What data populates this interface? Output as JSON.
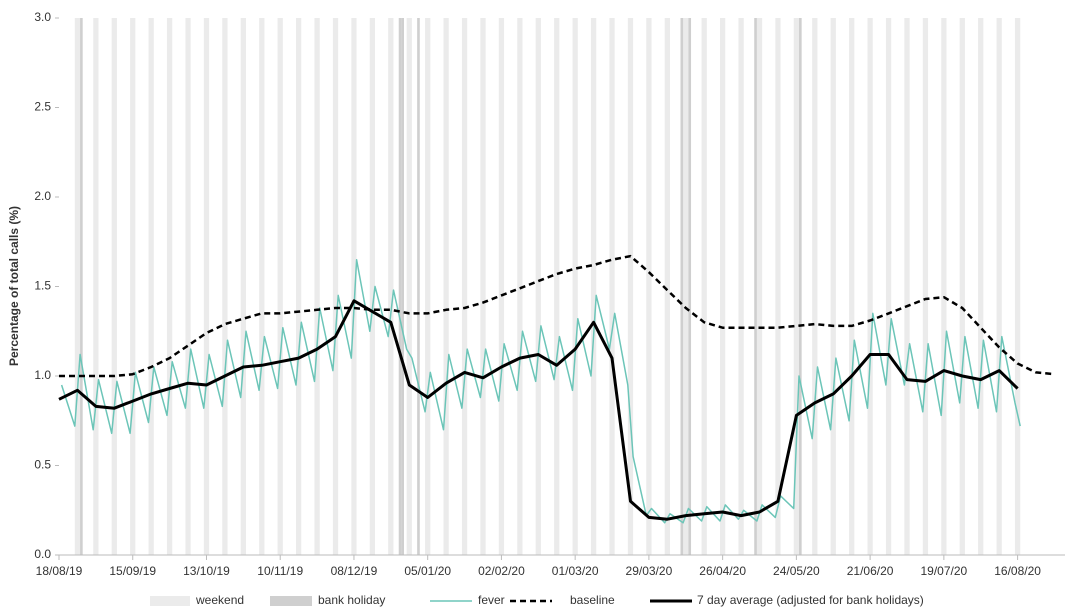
{
  "chart_data": {
    "type": "line",
    "y_label": "Percentage of total calls (%)",
    "xlim": [
      "18/08/19",
      "03/09/20"
    ],
    "xticks": [
      "18/08/19",
      "15/09/19",
      "13/10/19",
      "10/11/19",
      "08/12/19",
      "05/01/20",
      "02/02/20",
      "01/03/20",
      "29/03/20",
      "26/04/20",
      "24/05/20",
      "21/06/20",
      "19/07/20",
      "16/08/20"
    ],
    "ylim": [
      0,
      3
    ],
    "yticks": [
      {
        "value": 0,
        "label": "0.0"
      },
      0.5,
      {
        "value": 1,
        "label": "1.0"
      },
      1.5,
      {
        "value": 2,
        "label": "2.0"
      },
      2.5,
      {
        "value": 3,
        "label": "3.0"
      }
    ],
    "weekend": {
      "label": "weekend",
      "color": "#ebebeb"
    },
    "bank_holiday": {
      "label": "bank holiday",
      "color": "#cfcfcf",
      "dates": [
        "26/08/19",
        "25/12/19",
        "26/12/19",
        "01/01/20",
        "10/04/20",
        "13/04/20",
        "08/05/20",
        "25/05/20"
      ]
    },
    "x": [
      "18/08/19",
      "25/08/19",
      "01/09/19",
      "08/09/19",
      "15/09/19",
      "22/09/19",
      "29/09/19",
      "06/10/19",
      "13/10/19",
      "20/10/19",
      "27/10/19",
      "03/11/19",
      "10/11/19",
      "17/11/19",
      "24/11/19",
      "01/12/19",
      "08/12/19",
      "15/12/19",
      "22/12/19",
      "29/12/19",
      "05/01/20",
      "12/01/20",
      "19/01/20",
      "26/01/20",
      "02/02/20",
      "09/02/20",
      "16/02/20",
      "23/02/20",
      "01/03/20",
      "08/03/20",
      "15/03/20",
      "22/03/20",
      "29/03/20",
      "05/04/20",
      "12/04/20",
      "19/04/20",
      "26/04/20",
      "03/05/20",
      "10/05/20",
      "17/05/20",
      "24/05/20",
      "31/05/20",
      "07/06/20",
      "14/06/20",
      "21/06/20",
      "28/06/20",
      "05/07/20",
      "12/07/20",
      "19/07/20",
      "26/07/20",
      "02/08/20",
      "09/08/20",
      "16/08/20",
      "23/08/20",
      "30/08/20"
    ],
    "series": [
      {
        "name": "fever",
        "color": "#6cc5b8",
        "width": 1.5,
        "dashed": false,
        "x": [
          "19/08/19",
          "24/08/19",
          "26/08/19",
          "31/08/19",
          "02/09/19",
          "07/09/19",
          "09/09/19",
          "14/09/19",
          "16/09/19",
          "21/09/19",
          "23/09/19",
          "28/09/19",
          "30/09/19",
          "05/10/19",
          "07/10/19",
          "12/10/19",
          "14/10/19",
          "19/10/19",
          "21/10/19",
          "26/10/19",
          "28/10/19",
          "02/11/19",
          "04/11/19",
          "09/11/19",
          "11/11/19",
          "16/11/19",
          "18/11/19",
          "23/11/19",
          "25/11/19",
          "30/11/19",
          "02/12/19",
          "07/12/19",
          "09/12/19",
          "14/12/19",
          "16/12/19",
          "21/12/19",
          "23/12/19",
          "28/12/19",
          "30/12/19",
          "04/01/20",
          "06/01/20",
          "11/01/20",
          "13/01/20",
          "18/01/20",
          "20/01/20",
          "25/01/20",
          "27/01/20",
          "01/02/20",
          "03/02/20",
          "08/02/20",
          "10/02/20",
          "15/02/20",
          "17/02/20",
          "22/02/20",
          "24/02/20",
          "29/02/20",
          "02/03/20",
          "07/03/20",
          "09/03/20",
          "14/03/20",
          "16/03/20",
          "21/03/20",
          "23/03/20",
          "28/03/20",
          "30/03/20",
          "04/04/20",
          "06/04/20",
          "11/04/20",
          "13/04/20",
          "18/04/20",
          "20/04/20",
          "25/04/20",
          "27/04/20",
          "02/05/20",
          "04/05/20",
          "09/05/20",
          "11/05/20",
          "16/05/20",
          "18/05/20",
          "23/05/20",
          "25/05/20",
          "30/05/20",
          "01/06/20",
          "06/06/20",
          "08/06/20",
          "13/06/20",
          "15/06/20",
          "20/06/20",
          "22/06/20",
          "27/06/20",
          "29/06/20",
          "04/07/20",
          "06/07/20",
          "11/07/20",
          "13/07/20",
          "18/07/20",
          "20/07/20",
          "25/07/20",
          "27/07/20",
          "01/08/20",
          "03/08/20",
          "08/08/20",
          "10/08/20",
          "15/08/20",
          "17/08/20"
        ],
        "values": [
          0.95,
          0.72,
          1.12,
          0.7,
          0.98,
          0.68,
          0.97,
          0.68,
          1.02,
          0.74,
          1.05,
          0.78,
          1.08,
          0.82,
          1.15,
          0.82,
          1.12,
          0.83,
          1.2,
          0.88,
          1.25,
          0.92,
          1.22,
          0.93,
          1.27,
          0.95,
          1.3,
          0.97,
          1.38,
          1.03,
          1.45,
          1.1,
          1.65,
          1.25,
          1.5,
          1.22,
          1.48,
          1.15,
          1.1,
          0.8,
          1.02,
          0.7,
          1.12,
          0.82,
          1.15,
          0.88,
          1.15,
          0.86,
          1.18,
          0.92,
          1.25,
          0.97,
          1.28,
          0.98,
          1.22,
          0.92,
          1.32,
          1.0,
          1.45,
          1.15,
          1.35,
          0.95,
          0.55,
          0.22,
          0.26,
          0.18,
          0.23,
          0.18,
          0.26,
          0.19,
          0.27,
          0.19,
          0.28,
          0.2,
          0.25,
          0.19,
          0.28,
          0.21,
          0.33,
          0.26,
          1.0,
          0.65,
          1.05,
          0.7,
          1.1,
          0.75,
          1.2,
          0.82,
          1.35,
          0.95,
          1.32,
          0.95,
          1.18,
          0.8,
          1.18,
          0.78,
          1.25,
          0.85,
          1.22,
          0.82,
          1.2,
          0.8,
          1.22,
          0.85,
          0.72
        ]
      },
      {
        "name": "baseline",
        "color": "#000000",
        "width": 2.5,
        "dashed": true,
        "values": [
          1.0,
          1.0,
          1.0,
          1.0,
          1.01,
          1.05,
          1.1,
          1.17,
          1.24,
          1.29,
          1.32,
          1.35,
          1.35,
          1.36,
          1.37,
          1.38,
          1.38,
          1.37,
          1.37,
          1.35,
          1.35,
          1.37,
          1.38,
          1.41,
          1.45,
          1.49,
          1.53,
          1.57,
          1.6,
          1.62,
          1.65,
          1.67,
          1.58,
          1.48,
          1.38,
          1.3,
          1.27,
          1.27,
          1.27,
          1.27,
          1.28,
          1.29,
          1.28,
          1.28,
          1.31,
          1.35,
          1.39,
          1.43,
          1.44,
          1.38,
          1.27,
          1.16,
          1.07,
          1.02,
          1.01
        ]
      },
      {
        "name": "7 day average (adjusted for bank holidays)",
        "color": "#000000",
        "width": 3,
        "dashed": false,
        "values": [
          0.87,
          0.92,
          0.83,
          0.82,
          0.86,
          0.9,
          0.93,
          0.96,
          0.95,
          1.0,
          1.05,
          1.06,
          1.08,
          1.1,
          1.15,
          1.22,
          1.42,
          1.36,
          1.3,
          0.95,
          0.88,
          0.96,
          1.02,
          0.99,
          1.05,
          1.1,
          1.12,
          1.06,
          1.15,
          1.3,
          1.1,
          0.3,
          0.21,
          0.2,
          0.22,
          0.23,
          0.24,
          0.22,
          0.24,
          0.3,
          0.78,
          0.85,
          0.9,
          1.0,
          1.12,
          1.12,
          0.98,
          0.97,
          1.03,
          1.0,
          0.98,
          1.03,
          0.93,
          null,
          null
        ]
      }
    ]
  }
}
